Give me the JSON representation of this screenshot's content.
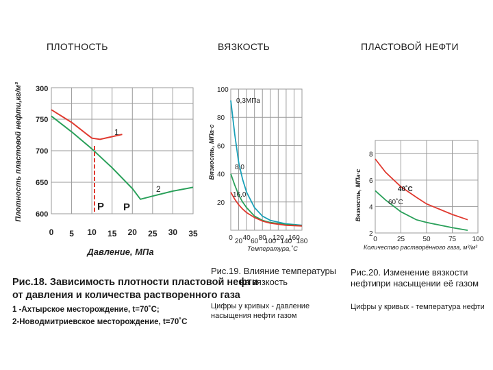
{
  "headers": [
    "ПЛОТНОСТЬ",
    "ВЯЗКОСТЬ",
    "ПЛАСТОВОЙ НЕФТИ"
  ],
  "colors": {
    "red": "#e03a30",
    "green": "#2aa05a",
    "teal": "#1aa0b8",
    "grid": "#9a9a9a"
  },
  "chart_data": [
    {
      "type": "line",
      "ylabel": "Плотность пластовой нефти,кг/м³",
      "xlabel": "Давление, МПа",
      "x_ticks": [
        "0",
        "5",
        "10",
        "15",
        "20",
        "25",
        "30",
        "35"
      ],
      "y_ticks": [
        "600",
        "650",
        "700",
        "750",
        "300"
      ],
      "xlim": [
        0,
        35
      ],
      "ylim": [
        600,
        800
      ],
      "series": [
        {
          "name": "1",
          "color": "red",
          "x": [
            0,
            5,
            10,
            12,
            17.5
          ],
          "y": [
            765,
            745,
            720,
            718,
            726
          ]
        },
        {
          "name": "2",
          "color": "green",
          "x": [
            0,
            5,
            10,
            15,
            20,
            22,
            25,
            30,
            35
          ],
          "y": [
            755,
            730,
            703,
            673,
            640,
            623,
            628,
            636,
            642
          ]
        }
      ],
      "markers": [
        "P",
        "P"
      ],
      "reference_x": 10.5
    },
    {
      "type": "line",
      "ylabel": "Вязкость, МПа·с",
      "xlabel": "Температура,˚С",
      "x_ticks": [
        "0",
        "40",
        "80",
        "120",
        "160",
        "20",
        "60",
        "100",
        "140",
        "180"
      ],
      "y_ticks": [
        "100",
        "80",
        "60",
        "40",
        "20"
      ],
      "xlim": [
        0,
        180
      ],
      "ylim": [
        0,
        100
      ],
      "series": [
        {
          "name": "0,3МПа",
          "color": "teal",
          "x": [
            0,
            10,
            20,
            30,
            40,
            60,
            80,
            100,
            140,
            180
          ],
          "y": [
            92,
            68,
            48,
            36,
            27,
            16,
            10,
            7,
            4.5,
            3.5
          ]
        },
        {
          "name": "8,0",
          "color": "green",
          "x": [
            0,
            10,
            20,
            30,
            40,
            60,
            80,
            100,
            140,
            180
          ],
          "y": [
            40,
            32,
            25,
            20,
            16,
            10,
            7,
            5.5,
            4,
            3.2
          ]
        },
        {
          "name": "16,0",
          "color": "red",
          "x": [
            0,
            10,
            20,
            30,
            40,
            60,
            80,
            100,
            140,
            180
          ],
          "y": [
            27,
            22,
            18,
            15,
            12.5,
            9,
            6.5,
            5,
            3.5,
            3
          ]
        }
      ]
    },
    {
      "type": "line",
      "ylabel": "Вязкость, МПа·с",
      "xlabel": "Количество растворённого газа, м³/м³",
      "x_ticks": [
        "0",
        "25",
        "50",
        "75",
        "100"
      ],
      "y_ticks": [
        "8",
        "6",
        "4",
        "2"
      ],
      "xlim": [
        0,
        100
      ],
      "ylim": [
        2,
        9
      ],
      "series": [
        {
          "name": "40˚С",
          "color": "red",
          "x": [
            0,
            10,
            25,
            40,
            50,
            75,
            90
          ],
          "y": [
            7.6,
            6.6,
            5.5,
            4.7,
            4.2,
            3.4,
            3.0
          ]
        },
        {
          "name": "60˚С",
          "color": "green",
          "x": [
            0,
            10,
            25,
            40,
            50,
            75,
            90
          ],
          "y": [
            5.2,
            4.5,
            3.6,
            3.0,
            2.8,
            2.4,
            2.2
          ]
        }
      ]
    }
  ],
  "captions": {
    "fig18": {
      "title_line1": "Рис.18. Зависимость плотности пластовой нефти",
      "title_line2": "от давления и количества растворенного газа",
      "line3": "1 -Ахтырское месторождение, t=70˚C;",
      "line4": "2-Новодмитриевское месторождение, t=70˚C"
    },
    "fig19": {
      "title_line1": "Рис.19. Влияние температуры",
      "title_line2": "на вязкость",
      "note_line1": "Цифры у кривых - давление",
      "note_line2": "насыщения нефти газом"
    },
    "fig20": {
      "title_line1": "Рис.20. Изменение вязкости нефти",
      "title_line2": "при насыщении её газом",
      "note_line1": "Цифры у кривых - температура нефти"
    }
  }
}
